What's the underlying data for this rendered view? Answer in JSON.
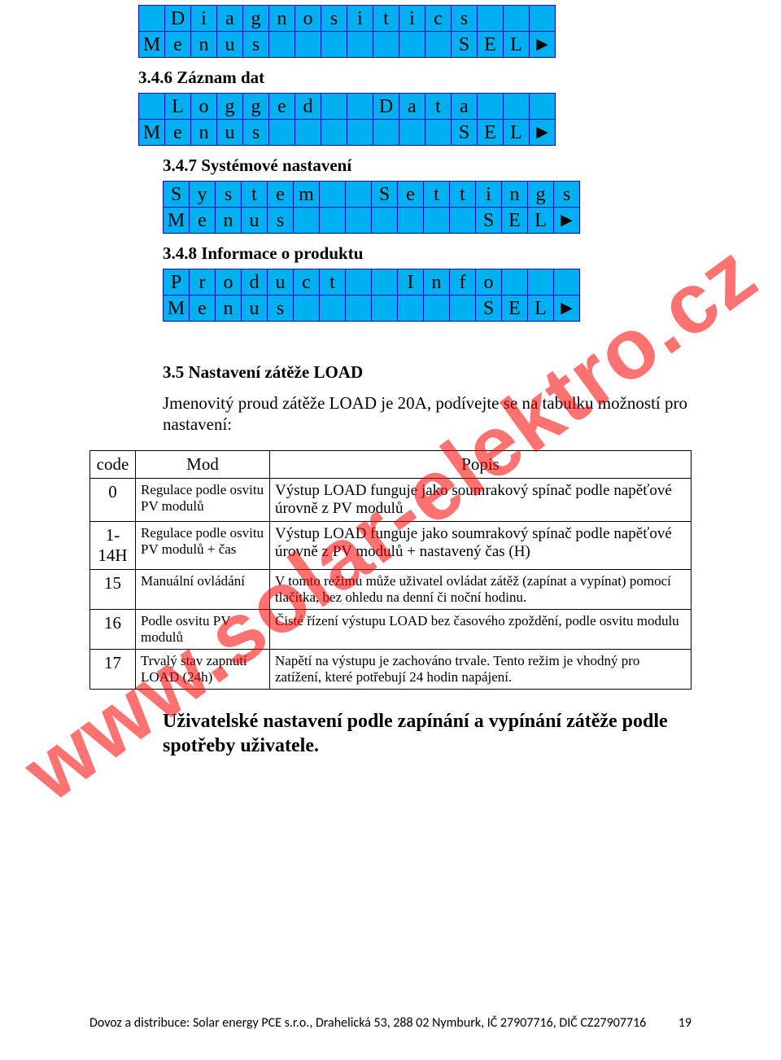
{
  "watermark": "www.solar-elektro.cz",
  "lcd_panels": [
    {
      "heading": null,
      "indent": "indent1",
      "cols": 16,
      "rows": [
        [
          " ",
          "D",
          "i",
          "a",
          "g",
          "n",
          "o",
          "s",
          "i",
          "t",
          "i",
          "c",
          "s",
          " ",
          " ",
          " "
        ],
        [
          "M",
          "e",
          "n",
          "u",
          "s",
          " ",
          " ",
          " ",
          " ",
          " ",
          " ",
          " ",
          "S",
          "E",
          "L",
          "►"
        ]
      ]
    },
    {
      "heading": "3.4.6 Záznam dat",
      "indent": "indent1",
      "cols": 16,
      "rows": [
        [
          " ",
          "L",
          "o",
          "g",
          "g",
          "e",
          "d",
          " ",
          " ",
          "D",
          "a",
          "t",
          "a",
          " ",
          " ",
          " "
        ],
        [
          "M",
          "e",
          "n",
          "u",
          "s",
          " ",
          " ",
          " ",
          " ",
          " ",
          " ",
          " ",
          "S",
          "E",
          "L",
          "►"
        ]
      ]
    },
    {
      "heading": "3.4.7 Systémové nastavení",
      "indent": "indent2",
      "cols": 16,
      "rows": [
        [
          "S",
          "y",
          "s",
          "t",
          "e",
          "m",
          " ",
          " ",
          "S",
          "e",
          "t",
          "t",
          "i",
          "n",
          "g",
          "s"
        ],
        [
          "M",
          "e",
          "n",
          "u",
          "s",
          " ",
          " ",
          " ",
          " ",
          " ",
          " ",
          " ",
          "S",
          "E",
          "L",
          "►"
        ]
      ]
    },
    {
      "heading": "3.4.8 Informace o produktu",
      "indent": "indent2",
      "cols": 16,
      "rows": [
        [
          "P",
          "r",
          "o",
          "d",
          "u",
          "c",
          "t",
          " ",
          " ",
          "I",
          "n",
          "f",
          "o",
          " ",
          " ",
          " "
        ],
        [
          "M",
          "e",
          "n",
          "u",
          "s",
          " ",
          " ",
          " ",
          " ",
          " ",
          " ",
          " ",
          "S",
          "E",
          "L",
          "►"
        ]
      ]
    }
  ],
  "load_section": {
    "heading": "3.5 Nastavení zátěže LOAD",
    "body": "Jmenovitý proud zátěže LOAD je 20A, podívejte se na tabulku možností pro nastavení:"
  },
  "table": {
    "headers": [
      "code",
      "Mod",
      "Popis"
    ],
    "rows": [
      {
        "code": "0",
        "mod": "Regulace podle osvitu PV modulů",
        "popis": "Výstup LOAD funguje jako soumrakový spínač podle napěťové úrovně z PV modulů",
        "popis_large": true
      },
      {
        "code": "1-14H",
        "mod": "Regulace podle osvitu PV modulů + čas",
        "popis": "Výstup LOAD funguje jako soumrakový spínač podle napěťové úrovně z PV modulů + nastavený čas (H)",
        "popis_large": true
      },
      {
        "code": "15",
        "mod": "Manuální ovládání",
        "popis": "V tomto režimu může uživatel ovládat zátěž (zapínat a vypínat) pomocí tlačítka, bez ohledu na denní či noční hodinu.",
        "popis_large": false
      },
      {
        "code": "16",
        "mod": "Podle osvitu PV modulů",
        "popis": "Čisté řízení výstupu LOAD bez časového zpoždění, podle osvitu modulu",
        "popis_large": false
      },
      {
        "code": "17",
        "mod": "Trvalý stav zapnutí LOAD (24h)",
        "popis": "Napětí na výstupu je zachováno trvale. Tento režim je vhodný pro zatížení, které potřebují 24 hodin napájení.",
        "popis_large": false
      }
    ]
  },
  "user_heading": "Uživatelské nastavení podle zapínání a vypínání zátěže podle spotřeby uživatele.",
  "footer": {
    "text": "Dovoz a distribuce: Solar energy PCE s.r.o., Drahelická 53, 288 02 Nymburk, IČ 27907716, DIČ CZ27907716",
    "page": "19"
  },
  "colors": {
    "lcd_bg": "#00b0f0",
    "lcd_border": "#0000cc",
    "watermark": "#ff0000"
  }
}
